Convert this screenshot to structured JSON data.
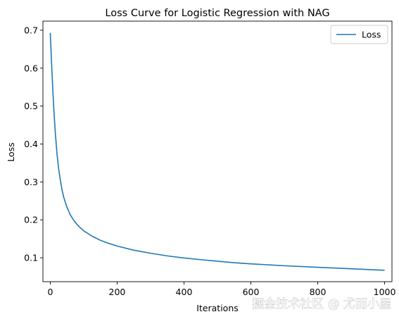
{
  "chart_data": {
    "type": "line",
    "title": "Loss Curve for Logistic Regression with NAG",
    "xlabel": "Iterations",
    "ylabel": "Loss",
    "xlim": [
      -22,
      1022
    ],
    "ylim": [
      0.037,
      0.724
    ],
    "xticks": [
      0,
      200,
      400,
      600,
      800,
      1000
    ],
    "yticks": [
      0.1,
      0.2,
      0.3,
      0.4,
      0.5,
      0.6,
      0.7
    ],
    "grid": false,
    "legend": {
      "location": "upper right",
      "entries": [
        "Loss"
      ]
    },
    "series": [
      {
        "name": "Loss",
        "color": "#1f77b4",
        "x": [
          0,
          5,
          10,
          15,
          20,
          25,
          30,
          35,
          40,
          50,
          60,
          70,
          80,
          90,
          100,
          125,
          150,
          175,
          200,
          250,
          300,
          350,
          400,
          450,
          500,
          550,
          600,
          700,
          800,
          900,
          1000
        ],
        "y": [
          0.693,
          0.59,
          0.5,
          0.43,
          0.375,
          0.335,
          0.305,
          0.28,
          0.26,
          0.233,
          0.213,
          0.199,
          0.188,
          0.179,
          0.171,
          0.157,
          0.146,
          0.138,
          0.131,
          0.12,
          0.112,
          0.105,
          0.0995,
          0.095,
          0.091,
          0.087,
          0.084,
          0.079,
          0.075,
          0.071,
          0.067
        ]
      }
    ]
  },
  "watermark": "掘金技术社区 @ 尤而小屋"
}
